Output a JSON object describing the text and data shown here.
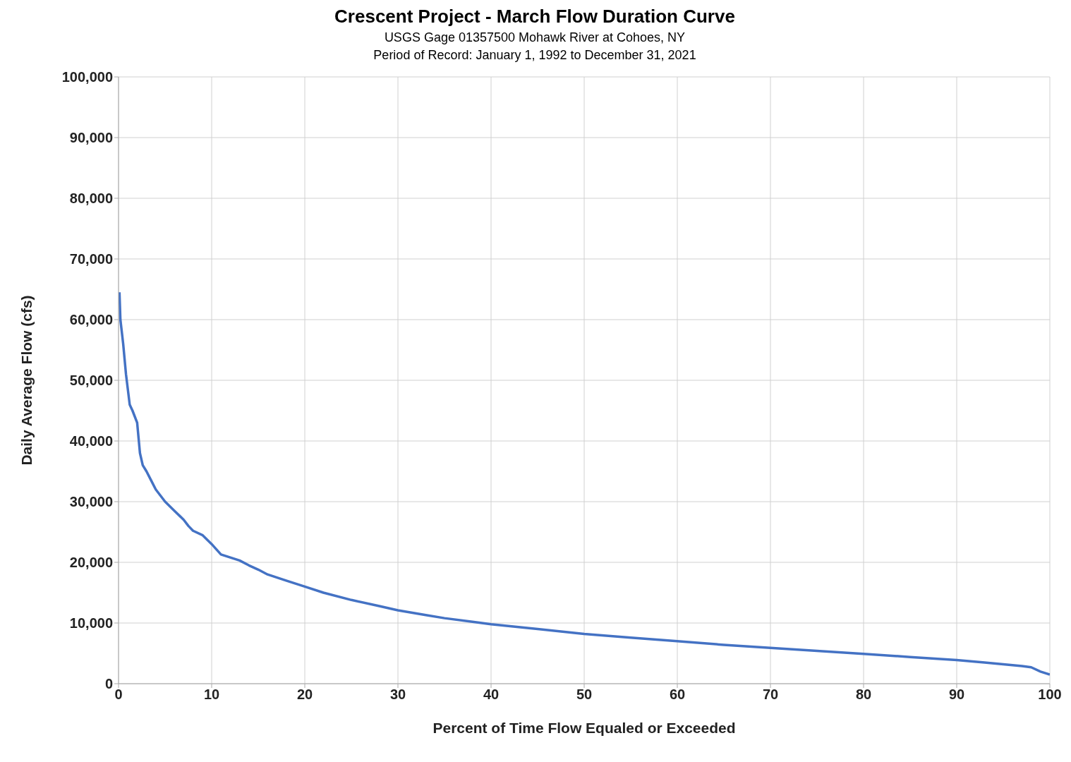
{
  "chart_data": {
    "type": "line",
    "title": "Crescent Project - March Flow Duration Curve",
    "subtitle": "USGS Gage 01357500 Mohawk River at Cohoes, NY\nPeriod of Record: January 1, 1992 to December 31, 2021",
    "xlabel": "Percent of Time Flow Equaled or Exceeded",
    "ylabel": "Daily Average Flow (cfs)",
    "x": [
      0.1,
      0.2,
      0.5,
      0.8,
      1.2,
      1.5,
      2,
      2.3,
      2.6,
      3,
      3.5,
      4,
      5,
      6,
      7,
      7.5,
      8,
      9,
      10,
      11,
      12,
      13,
      14,
      15,
      16,
      18,
      20,
      22,
      25,
      28,
      30,
      33,
      35,
      38,
      40,
      45,
      50,
      55,
      60,
      65,
      70,
      75,
      80,
      85,
      90,
      93,
      95,
      97,
      98,
      99,
      100
    ],
    "series": [
      {
        "color": "#4472c4",
        "values": [
          64500,
          60000,
          56000,
          51000,
          46000,
          45000,
          43000,
          38000,
          36000,
          35000,
          33500,
          32000,
          30000,
          28500,
          27000,
          26000,
          25200,
          24500,
          23000,
          21300,
          20800,
          20300,
          19500,
          18800,
          18000,
          17000,
          16000,
          15000,
          13800,
          12800,
          12100,
          11300,
          10800,
          10200,
          9800,
          9000,
          8200,
          7600,
          7000,
          6400,
          5900,
          5400,
          4900,
          4400,
          3900,
          3500,
          3200,
          2900,
          2700,
          2000,
          1500
        ]
      }
    ],
    "xlim": [
      0,
      100
    ],
    "xticks": [
      0,
      10,
      20,
      30,
      40,
      50,
      60,
      70,
      80,
      90,
      100
    ],
    "ylim": [
      0,
      100000
    ],
    "yticks": [
      0,
      {
        "value": 10000,
        "label": "10,000"
      },
      {
        "value": 20000,
        "label": "20,000"
      },
      {
        "value": 30000,
        "label": "30,000"
      },
      {
        "value": 40000,
        "label": "40,000"
      },
      {
        "value": 50000,
        "label": "50,000"
      },
      {
        "value": 60000,
        "label": "60,000"
      },
      {
        "value": 70000,
        "label": "70,000"
      },
      {
        "value": 80000,
        "label": "80,000"
      },
      {
        "value": 90000,
        "label": "90,000"
      },
      {
        "value": 100000,
        "label": "100,000"
      }
    ],
    "grid": true,
    "legend": false,
    "marker": "none",
    "line_style": "solid"
  }
}
